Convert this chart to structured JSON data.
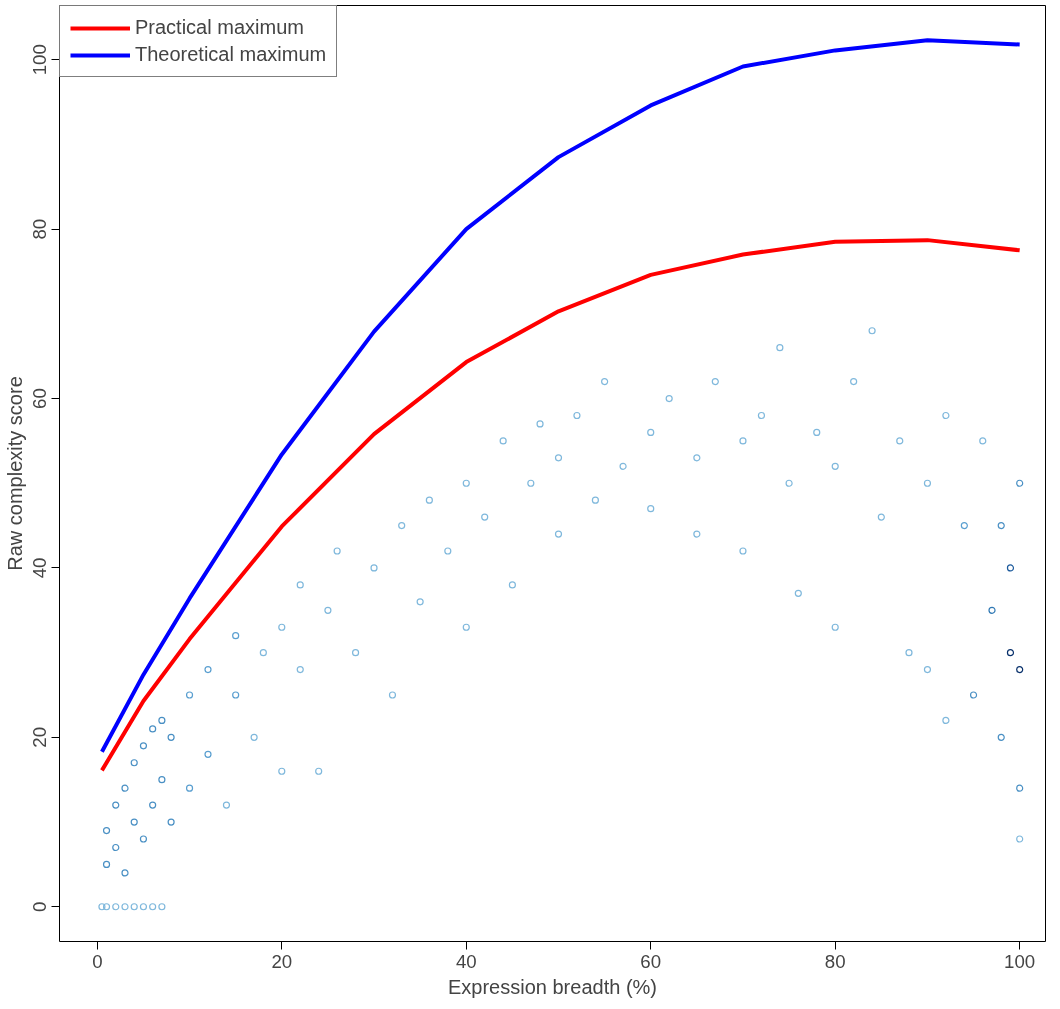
{
  "chart_data": {
    "type": "scatter",
    "xlabel": "Expression breadth (%)",
    "ylabel": "Raw complexity score",
    "xlim": [
      -4.1,
      102.8
    ],
    "ylim": [
      -4.1,
      106.4
    ],
    "xticks": [
      0,
      20,
      40,
      60,
      80,
      100
    ],
    "yticks": [
      0,
      20,
      40,
      60,
      80,
      100
    ],
    "grid": false,
    "legend": "top left",
    "series": [
      {
        "marker": "circle",
        "x": [
          0.5,
          1,
          2,
          3,
          4,
          5,
          6,
          7,
          1,
          1,
          2,
          2,
          3,
          3,
          4,
          4,
          5,
          5,
          6,
          6,
          7,
          7,
          8,
          8,
          10,
          10,
          12,
          12,
          14,
          15,
          15,
          17,
          18,
          20,
          20,
          22,
          22,
          24,
          25,
          26,
          28,
          30,
          32,
          33,
          35,
          36,
          38,
          40,
          40,
          42,
          44,
          45,
          47,
          48,
          50,
          50,
          52,
          54,
          55,
          57,
          60,
          60,
          62,
          65,
          65,
          67,
          70,
          70,
          72,
          74,
          75,
          76,
          78,
          80,
          80,
          82,
          84,
          85,
          87,
          88,
          90,
          90,
          92,
          92,
          94,
          95,
          96,
          97,
          98,
          98,
          99,
          99,
          100,
          100,
          100,
          100
        ],
        "values": [
          0,
          0,
          0,
          0,
          0,
          0,
          0,
          0,
          5,
          9,
          7,
          12,
          4,
          14,
          10,
          17,
          8,
          19,
          12,
          21,
          15,
          22,
          10,
          20,
          14,
          25,
          18,
          28,
          12,
          25,
          32,
          20,
          30,
          16,
          33,
          28,
          38,
          16,
          35,
          42,
          30,
          40,
          25,
          45,
          36,
          48,
          42,
          33,
          50,
          46,
          55,
          38,
          50,
          57,
          44,
          53,
          58,
          48,
          62,
          52,
          56,
          47,
          60,
          53,
          44,
          62,
          55,
          42,
          58,
          66,
          50,
          37,
          56,
          52,
          33,
          62,
          68,
          46,
          55,
          30,
          50,
          28,
          58,
          22,
          45,
          25,
          55,
          35,
          20,
          45,
          30,
          40,
          8,
          28,
          50,
          14
        ],
        "colors": [
          "#7fb8dc",
          "#7fb8dc",
          "#7fb8dc",
          "#7fb8dc",
          "#7fb8dc",
          "#7fb8dc",
          "#7fb8dc",
          "#7fb8dc",
          "#4a90c4",
          "#4a90c4",
          "#4a90c4",
          "#4a90c4",
          "#4a90c4",
          "#4a90c4",
          "#4a90c4",
          "#4a90c4",
          "#4a90c4",
          "#4a90c4",
          "#4a90c4",
          "#4a90c4",
          "#4a90c4",
          "#4a90c4",
          "#4a90c4",
          "#4a90c4",
          "#5a9fd0",
          "#5a9fd0",
          "#5a9fd0",
          "#5a9fd0",
          "#7fb8dc",
          "#5a9fd0",
          "#5a9fd0",
          "#7fb8dc",
          "#7fb8dc",
          "#7fb8dc",
          "#7fb8dc",
          "#7fb8dc",
          "#7fb8dc",
          "#7fb8dc",
          "#7fb8dc",
          "#7fb8dc",
          "#7fb8dc",
          "#7fb8dc",
          "#7fb8dc",
          "#7fb8dc",
          "#7fb8dc",
          "#7fb8dc",
          "#7fb8dc",
          "#7fb8dc",
          "#7fb8dc",
          "#7fb8dc",
          "#7fb8dc",
          "#7fb8dc",
          "#7fb8dc",
          "#7fb8dc",
          "#7fb8dc",
          "#7fb8dc",
          "#7fb8dc",
          "#7fb8dc",
          "#7fb8dc",
          "#7fb8dc",
          "#7fb8dc",
          "#7fb8dc",
          "#7fb8dc",
          "#7fb8dc",
          "#7fb8dc",
          "#7fb8dc",
          "#7fb8dc",
          "#7fb8dc",
          "#7fb8dc",
          "#7fb8dc",
          "#7fb8dc",
          "#7fb8dc",
          "#7fb8dc",
          "#7fb8dc",
          "#7fb8dc",
          "#7fb8dc",
          "#7fb8dc",
          "#7fb8dc",
          "#7fb8dc",
          "#7fb8dc",
          "#7fb8dc",
          "#7fb8dc",
          "#7fb8dc",
          "#7fb8dc",
          "#5a9fd0",
          "#4a90c4",
          "#7fb8dc",
          "#2f78b4",
          "#4a90c4",
          "#4a90c4",
          "#08306b",
          "#1c5a9c",
          "#7fb8dc",
          "#08306b",
          "#4a90c4",
          "#4a90c4"
        ]
      },
      {
        "type": "line",
        "name": "Practical maximum",
        "color": "#ff0000",
        "x": [
          0.5,
          5,
          10,
          20,
          30,
          40,
          50,
          60,
          70,
          80,
          90,
          100
        ],
        "values": [
          16.1,
          24.3,
          31.6,
          44.9,
          55.8,
          64.3,
          70.3,
          74.6,
          77.0,
          78.5,
          78.7,
          77.5
        ]
      },
      {
        "type": "line",
        "name": "Theoretical maximum",
        "color": "#0000ff",
        "x": [
          0.5,
          5,
          10,
          20,
          30,
          40,
          50,
          60,
          70,
          80,
          90,
          100
        ],
        "values": [
          18.3,
          27.4,
          36.4,
          53.4,
          67.9,
          80.0,
          88.5,
          94.6,
          99.2,
          101.1,
          102.3,
          101.8
        ]
      }
    ]
  }
}
